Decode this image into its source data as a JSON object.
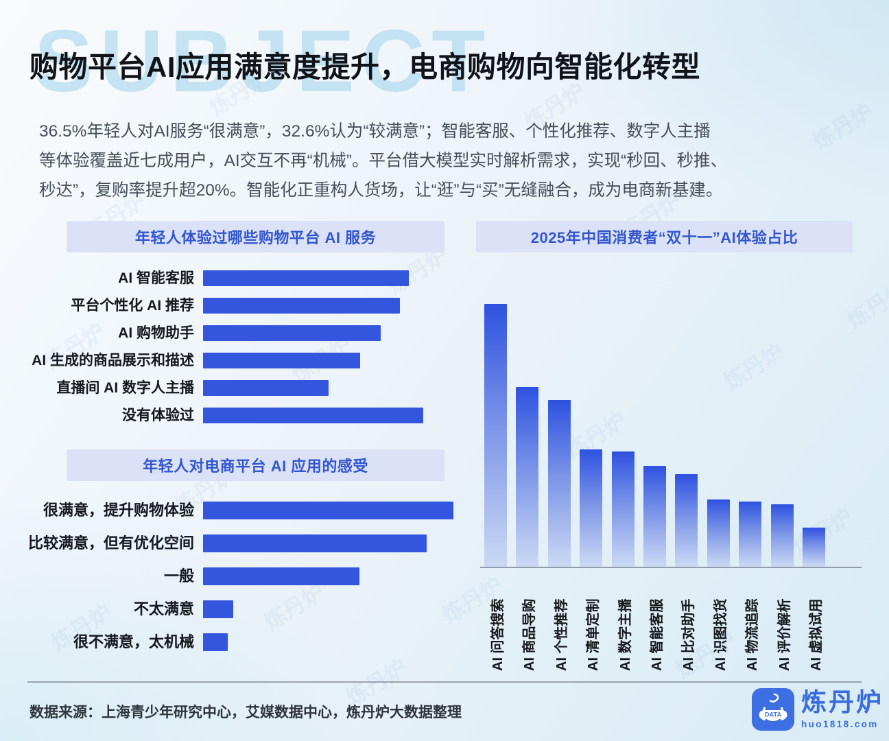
{
  "title": "购物平台AI应用满意度提升，电商购物向智能化转型",
  "watermark_text": "SUBJECT",
  "brand_watermark": "炼丹炉",
  "summary_lines": [
    "36.5%年轻人对AI服务“很满意”，32.6%认为“较满意”；智能客服、个性化推荐、数字人主播",
    "等体验覆盖近七成用户，AI交互不再“机械”。平台借大模型实时解析需求，实现“秒回、秒推、",
    "秒达”，复购率提升超20%。智能化正重构人货场，让“逛”与“买”无缝融合，成为电商新基建。"
  ],
  "chart_data": [
    {
      "type": "bar",
      "orientation": "horizontal",
      "title": "年轻人体验过哪些购物平台 AI 服务",
      "categories": [
        "AI 智能客服",
        "平台个性化 AI 推荐",
        "AI 购物助手",
        "AI 生成的商品展示和描述",
        "直播间 AI 数字人主播",
        "没有体验过"
      ],
      "values": [
        30.0,
        28.7,
        25.9,
        22.9,
        18.3,
        32.1
      ],
      "unit": "% (estimated from bar length, no value labels shown)",
      "xlim": [
        0,
        40
      ],
      "grid": false,
      "legend": "none"
    },
    {
      "type": "bar",
      "orientation": "horizontal",
      "title": "年轻人对电商平台 AI 应用的感受",
      "categories": [
        "很满意，提升购物体验",
        "比较满意，但有优化空间",
        "一般",
        "不太满意",
        "很不满意，太机械"
      ],
      "values": [
        36.5,
        32.6,
        22.8,
        4.4,
        3.6
      ],
      "unit": "% (36.5 / 32.6 stated in text; others estimated from bar length)",
      "xlim": [
        0,
        40
      ],
      "grid": false,
      "legend": "none"
    },
    {
      "type": "bar",
      "orientation": "vertical",
      "title": "2025年中国消费者“双十一”AI体验占比",
      "categories": [
        "AI 问答搜索",
        "AI 商品导购",
        "AI 个性推荐",
        "AI 清单定制",
        "AI 数字主播",
        "AI 智能客服",
        "AI 比对助手",
        "AI 识图找货",
        "AI 物流追踪",
        "AI 评价解析",
        "AI 虚拟试用"
      ],
      "values": [
        100,
        68.4,
        63.4,
        44.6,
        43.9,
        38.4,
        35.2,
        25.6,
        24.8,
        23.8,
        14.9
      ],
      "unit": "relative height, tallest bar = 100 (no axis or value labels shown)",
      "ylim": [
        0,
        100
      ],
      "grid": false,
      "legend": "none"
    }
  ],
  "footer": {
    "source": "数据来源：上海青少年研究中心，艾媒数据中心，炼丹炉大数据整理",
    "logo_name": "炼丹炉",
    "logo_url": "huo1818.com",
    "logo_badge": "DATA"
  },
  "colors": {
    "accent_blue": "#3455dd",
    "band_bg": "#dbe2f7",
    "band_text": "#3356cf",
    "gradient_top": "#2e52e0",
    "gradient_bottom": "#ccd9f4",
    "logo_blue": "#3a6cdf",
    "title_text": "#101318",
    "body_text": "#474e58"
  }
}
